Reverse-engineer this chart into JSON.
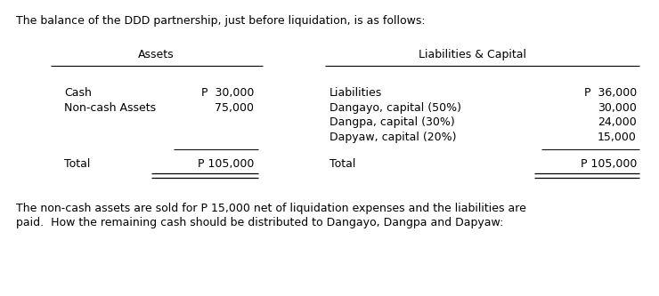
{
  "title_text": "The balance of the DDD partnership, just before liquidation, is as follows:",
  "col_header_assets": "Assets",
  "col_header_liabilities": "Liabilities & Capital",
  "assets_items": [
    {
      "label": "Cash",
      "value": "P  30,000"
    },
    {
      "label": "Non-cash Assets",
      "value": "75,000"
    }
  ],
  "assets_total_label": "Total",
  "assets_total_value": "P 105,000",
  "liabilities_items": [
    {
      "label": "Liabilities",
      "value": "P  36,000"
    },
    {
      "label": "Dangayo, capital (50%)",
      "value": "30,000"
    },
    {
      "label": "Dangpa, capital (30%)",
      "value": "24,000"
    },
    {
      "label": "Dapyaw, capital (20%)",
      "value": "15,000"
    }
  ],
  "liabilities_total_label": "Total",
  "liabilities_total_value": "P 105,000",
  "footer_line1": "The non-cash assets are sold for P 15,000 net of liquidation expenses and the liabilities are",
  "footer_line2": "paid.  How the remaining cash should be distributed to Dangayo, Dangpa and Dapyaw:",
  "bg_color": "#ffffff",
  "text_color": "#000000",
  "font_size": 9.0,
  "title_font_size": 9.0,
  "footer_font_size": 9.0
}
